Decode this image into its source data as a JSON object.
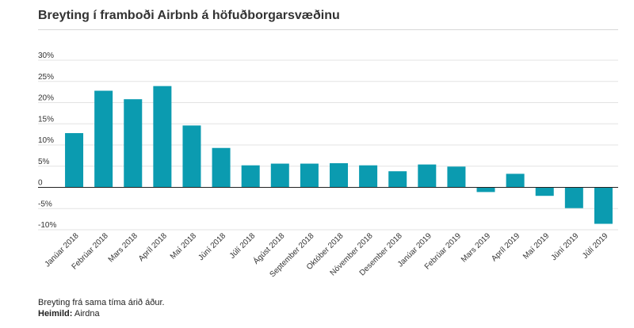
{
  "title": "Breyting í framboði Airbnb á höfuðborgarsvæðinu",
  "footnote": "Breyting frá sama tíma árið áður.",
  "source_label": "Heimild:",
  "source_value": "Airdna",
  "colors": {
    "bar": "#0b9bb0",
    "grid": "#e3e3e3",
    "zero_line": "#222222",
    "text": "#333333"
  },
  "chart_data": {
    "type": "bar",
    "categories": [
      "Janúar 2018",
      "Febrúar 2018",
      "Mars 2018",
      "Apríl 2018",
      "Maí 2018",
      "Júní 2018",
      "Júlí 2018",
      "Ágúst 2018",
      "September 2018",
      "Október 2018",
      "Nóvember 2018",
      "Desember 2018",
      "Janúar 2019",
      "Febrúar 2019",
      "Mars 2019",
      "Apríl 2019",
      "Maí 2019",
      "Júní 2019",
      "Júlí 2019"
    ],
    "values": [
      12.8,
      22.8,
      20.8,
      23.9,
      14.6,
      9.3,
      5.2,
      5.6,
      5.6,
      5.7,
      5.2,
      3.8,
      5.4,
      4.9,
      -1.1,
      3.2,
      -2.0,
      -4.9,
      -8.6
    ],
    "ylim": [
      -10,
      30
    ],
    "yticks": [
      30,
      25,
      20,
      15,
      10,
      5,
      0,
      -5,
      -10
    ],
    "ytick_labels": [
      "30%",
      "25%",
      "20%",
      "15%",
      "10%",
      "5%",
      "0",
      "-5%",
      "-10%"
    ],
    "grid": true,
    "xlabel": "",
    "ylabel": ""
  }
}
